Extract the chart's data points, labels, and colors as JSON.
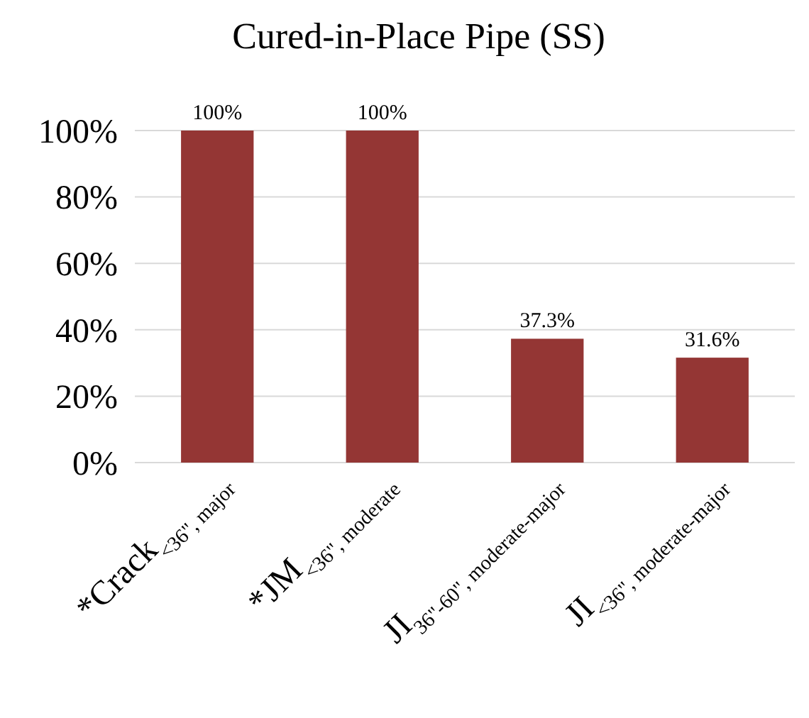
{
  "chart_data": {
    "type": "bar",
    "title": "Cured-in-Place Pipe (SS)",
    "categories": [
      "*Crack$_{<36\", major}$",
      "*JM$_{<36\", moderate}$",
      "JI$_{36\"-60\", moderate-major}$",
      "JI$_{<36\", moderate-major}$"
    ],
    "values": [
      100,
      100,
      37.3,
      31.6
    ],
    "value_labels": [
      "100%",
      "100%",
      "37.3%",
      "31.6%"
    ],
    "color": "#943634",
    "ylim": [
      0,
      100
    ],
    "yticks": [
      {
        "value": 0,
        "label": "0%"
      },
      {
        "value": 20,
        "label": "20%"
      },
      {
        "value": 40,
        "label": "40%"
      },
      {
        "value": 60,
        "label": "60%"
      },
      {
        "value": 80,
        "label": "80%"
      },
      {
        "value": 100,
        "label": "100%"
      }
    ],
    "grid": "y"
  }
}
